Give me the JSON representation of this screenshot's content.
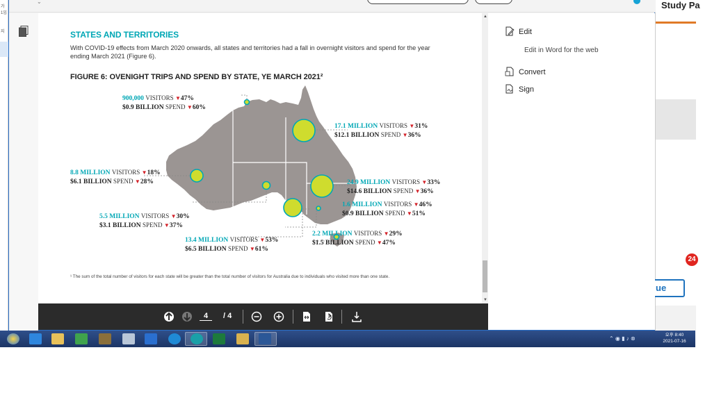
{
  "background_window": {
    "title_fragment": "Study Pa",
    "badge_count": "24",
    "button_fragment": "ue"
  },
  "left_strip": {
    "texts": [
      "가",
      "1입",
      "지"
    ]
  },
  "document": {
    "section_heading": "STATES AND TERRITORIES",
    "paragraph": "With COVID-19 effects from March 2020 onwards, all states and territories had a fall in overnight visitors and spend for the year ending March 2021 (Figure 6).",
    "figure_title": "FIGURE 6: OVENIGHT TRIPS AND SPEND BY STATE, YE MARCH 2021²",
    "footnote": "¹  The sum of the total number of visitors for each state will be greater than the total number of visitors for Australia due to individuals who visited more than one state.",
    "states": [
      {
        "visitors": "900,000",
        "visitors_label": "VISITORS",
        "visitors_change": "47%",
        "spend": "$0.9 BILLION",
        "spend_label": "SPEND",
        "spend_change": "60%"
      },
      {
        "visitors": "17.1 MILLION",
        "visitors_label": "VISITORS",
        "visitors_change": "31%",
        "spend": "$12.1 BILLION",
        "spend_label": "SPEND",
        "spend_change": "36%"
      },
      {
        "visitors": "8.8 MILLION",
        "visitors_label": "VISITORS",
        "visitors_change": "18%",
        "spend": "$6.1 BILLION",
        "spend_label": "SPEND",
        "spend_change": "28%"
      },
      {
        "visitors": "24.9 MILLION",
        "visitors_label": "VISITORS",
        "visitors_change": "33%",
        "spend": "$14.6 BILLION",
        "spend_label": "SPEND",
        "spend_change": "36%"
      },
      {
        "visitors": "1.6 MILLION",
        "visitors_label": "VISITORS",
        "visitors_change": "46%",
        "spend": "$0.9 BILLION",
        "spend_label": "SPEND",
        "spend_change": "51%"
      },
      {
        "visitors": "5.5 MILLION",
        "visitors_label": "VISITORS",
        "visitors_change": "30%",
        "spend": "$3.1 BILLION",
        "spend_label": "SPEND",
        "spend_change": "37%"
      },
      {
        "visitors": "13.4 MILLION",
        "visitors_label": "VISITORS",
        "visitors_change": "53%",
        "spend": "$6.5 BILLION",
        "spend_label": "SPEND",
        "spend_change": "61%"
      },
      {
        "visitors": "2.2 MILLION",
        "visitors_label": "VISITORS",
        "visitors_change": "29%",
        "spend": "$1.5 BILLION",
        "spend_label": "SPEND",
        "spend_change": "47%"
      }
    ],
    "colors": {
      "accent_teal": "#00a7b5",
      "bubble_fill": "#cfdc2e",
      "map_grey": "#9b9593",
      "decline_red": "#d32128"
    }
  },
  "pdf_toolbar": {
    "current_page": "4",
    "total_pages": "/ 4",
    "icons": [
      "arrow-up-icon",
      "arrow-down-icon",
      "zoom-out-icon",
      "zoom-in-icon",
      "fit-page-icon",
      "rotate-page-icon",
      "download-icon"
    ]
  },
  "side_pane": {
    "edit_label": "Edit",
    "edit_in_word_label": "Edit in Word for the web",
    "convert_label": "Convert",
    "sign_label": "Sign"
  },
  "taskbar": {
    "clock_period": "오후 8:40",
    "clock_date": "2021-07-16"
  }
}
